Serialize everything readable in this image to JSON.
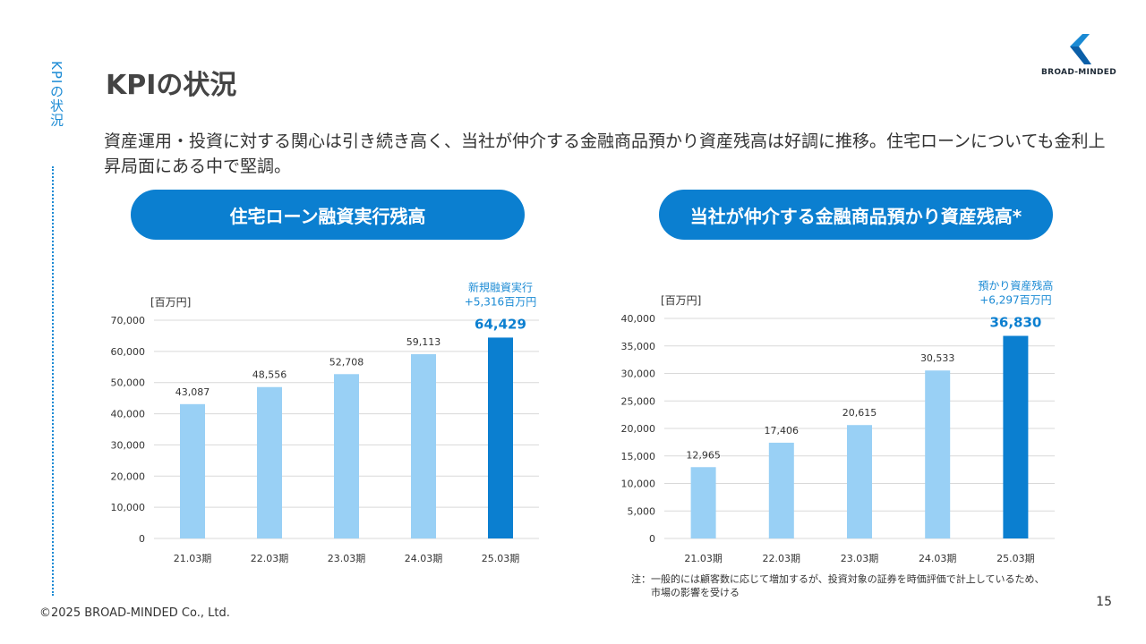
{
  "side_label": "KPIの状況",
  "title": "KPIの状況",
  "logo_text": "BROAD-MINDED",
  "lead_text": "資産運用・投資に対する関心は引き続き高く、当社が仲介する金融商品預かり資産残高は好調に推移。住宅ローンについても金利上昇局面にある中で堅調。",
  "left_heading": "住宅ローン融資実行残高",
  "right_heading": "当社が仲介する金融商品預かり資産残高*",
  "footnote_line1": "注：一般的には顧客数に応じて増加するが、投資対象の証券を時価評価で計上しているため、",
  "footnote_line2": "市場の影響を受ける",
  "copyright": "©2025 BROAD-MINDED Co., Ltd.",
  "page_number": "15",
  "colors": {
    "accent": "#0b7fd0",
    "bar_light": "#99d0f5",
    "bar_highlight": "#0b7fd0",
    "grid": "#d9d9d9"
  },
  "chart_data": [
    {
      "type": "bar",
      "title": "住宅ローン融資実行残高",
      "unit_label": "[百万円]",
      "categories": [
        "21.03期",
        "22.03期",
        "23.03期",
        "24.03期",
        "25.03期"
      ],
      "values": [
        43087,
        48556,
        52708,
        59113,
        64429
      ],
      "value_labels": [
        "43,087",
        "48,556",
        "52,708",
        "59,113",
        "64,429"
      ],
      "highlight_index": 4,
      "ylim": [
        0,
        70000
      ],
      "yticks": [
        0,
        10000,
        20000,
        30000,
        40000,
        50000,
        60000,
        70000
      ],
      "ytick_labels": [
        "0",
        "10,000",
        "20,000",
        "30,000",
        "40,000",
        "50,000",
        "60,000",
        "70,000"
      ],
      "annotation_line1": "新規融資実行",
      "annotation_line2": "+5,316百万円",
      "grid": true
    },
    {
      "type": "bar",
      "title": "当社が仲介する金融商品預かり資産残高*",
      "unit_label": "[百万円]",
      "categories": [
        "21.03期",
        "22.03期",
        "23.03期",
        "24.03期",
        "25.03期"
      ],
      "values": [
        12965,
        17406,
        20615,
        30533,
        36830
      ],
      "value_labels": [
        "12,965",
        "17,406",
        "20,615",
        "30,533",
        "36,830"
      ],
      "highlight_index": 4,
      "ylim": [
        0,
        40000
      ],
      "yticks": [
        0,
        5000,
        10000,
        15000,
        20000,
        25000,
        30000,
        35000,
        40000
      ],
      "ytick_labels": [
        "0",
        "5,000",
        "10,000",
        "15,000",
        "20,000",
        "25,000",
        "30,000",
        "35,000",
        "40,000"
      ],
      "annotation_line1": "預かり資産残高",
      "annotation_line2": "+6,297百万円",
      "grid": true
    }
  ]
}
